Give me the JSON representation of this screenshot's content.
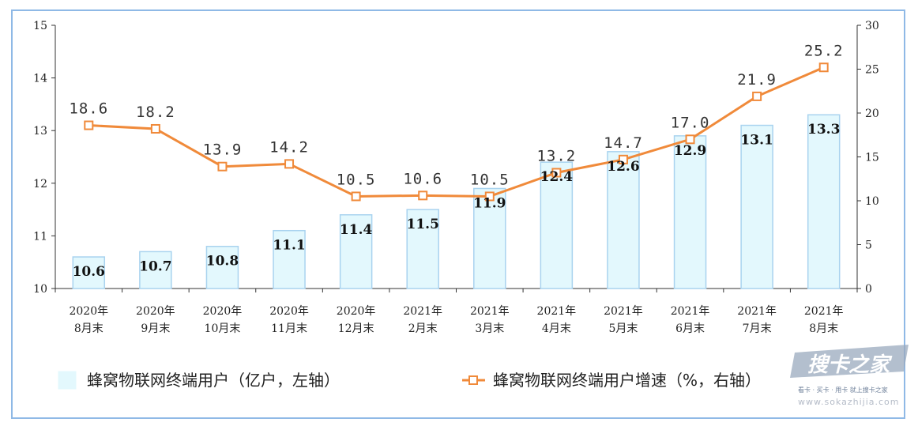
{
  "chart_data": {
    "type": "bar+line",
    "categories": [
      [
        "2020年",
        "8月末"
      ],
      [
        "2020年",
        "9月末"
      ],
      [
        "2020年",
        "10月末"
      ],
      [
        "2020年",
        "11月末"
      ],
      [
        "2020年",
        "12月末"
      ],
      [
        "2021年",
        "2月末"
      ],
      [
        "2021年",
        "3月末"
      ],
      [
        "2021年",
        "4月末"
      ],
      [
        "2021年",
        "5月末"
      ],
      [
        "2021年",
        "6月末"
      ],
      [
        "2021年",
        "7月末"
      ],
      [
        "2021年",
        "8月末"
      ]
    ],
    "series": [
      {
        "name": "蜂窝物联网终端用户（亿户，左轴）",
        "type": "bar",
        "axis": "left",
        "values": [
          10.6,
          10.7,
          10.8,
          11.1,
          11.4,
          11.5,
          11.9,
          12.4,
          12.6,
          12.9,
          13.1,
          13.3
        ],
        "labels": [
          "10.6",
          "10.7",
          "10.8",
          "11.1",
          "11.4",
          "11.5",
          "11.9",
          "12.4",
          "12.6",
          "12.9",
          "13.1",
          "13.3"
        ],
        "color": "#e3f8fd",
        "border_color": "#a9d3ef"
      },
      {
        "name": "蜂窝物联网终端用户增速（%，右轴）",
        "type": "line",
        "axis": "right",
        "values": [
          18.6,
          18.2,
          13.9,
          14.2,
          10.5,
          10.6,
          10.5,
          13.2,
          14.7,
          17.0,
          21.9,
          25.2
        ],
        "labels": [
          "18.6",
          "18.2",
          "13.9",
          "14.2",
          "10.5",
          "10.6",
          "10.5",
          "13.2",
          "14.7",
          "17.0",
          "21.9",
          "25.2"
        ],
        "color": "#f08a3a"
      }
    ],
    "y_left": {
      "min": 10,
      "max": 15,
      "ticks": [
        "10",
        "11",
        "12",
        "13",
        "14",
        "15"
      ]
    },
    "y_right": {
      "min": 0,
      "max": 30,
      "ticks": [
        "0",
        "5",
        "10",
        "15",
        "20",
        "25",
        "30"
      ]
    },
    "grid": false,
    "legend_position": "bottom"
  },
  "watermark": {
    "brand": "搜卡之家",
    "slogan": "看卡 · 买卡 · 用卡 就上搜卡之家",
    "url": "www.sokazhijia.com"
  }
}
